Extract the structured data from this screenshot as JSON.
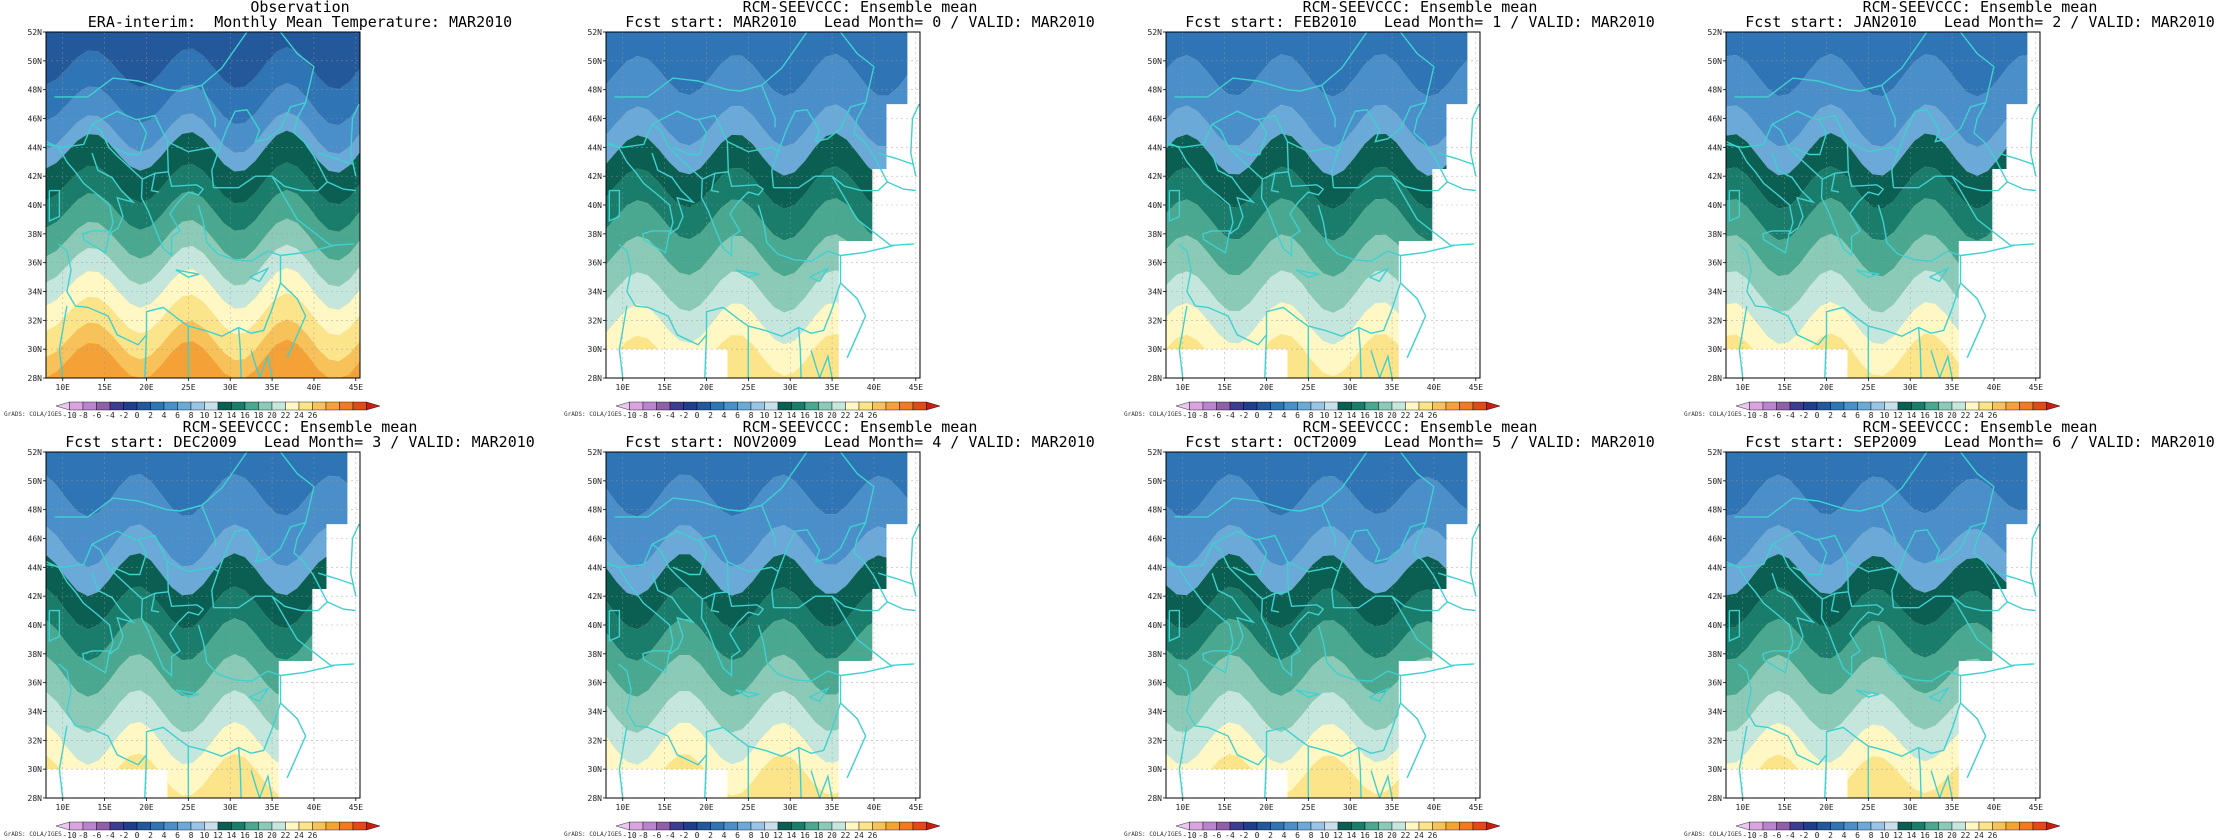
{
  "figure": {
    "panels": [
      {
        "id": "obs",
        "title1": "Observation",
        "title2": "ERA-interim:  Monthly Mean Temperature: MAR2010",
        "variant": 0
      },
      {
        "id": "lead0",
        "title1": "RCM-SEEVCCC: Ensemble mean",
        "title2": "Fcst start: MAR2010   Lead Month= 0 / VALID: MAR2010",
        "variant": 1
      },
      {
        "id": "lead1",
        "title1": "RCM-SEEVCCC: Ensemble mean",
        "title2": "Fcst start: FEB2010   Lead Month= 1 / VALID: MAR2010",
        "variant": 2
      },
      {
        "id": "lead2",
        "title1": "RCM-SEEVCCC: Ensemble mean",
        "title2": "Fcst start: JAN2010   Lead Month= 2 / VALID: MAR2010",
        "variant": 3
      },
      {
        "id": "lead3",
        "title1": "RCM-SEEVCCC: Ensemble mean",
        "title2": "Fcst start: DEC2009   Lead Month= 3 / VALID: MAR2010",
        "variant": 4
      },
      {
        "id": "lead4",
        "title1": "RCM-SEEVCCC: Ensemble mean",
        "title2": "Fcst start: NOV2009   Lead Month= 4 / VALID: MAR2010",
        "variant": 5
      },
      {
        "id": "lead5",
        "title1": "RCM-SEEVCCC: Ensemble mean",
        "title2": "Fcst start: OCT2009   Lead Month= 5 / VALID: MAR2010",
        "variant": 6
      },
      {
        "id": "lead6",
        "title1": "RCM-SEEVCCC: Ensemble mean",
        "title2": "Fcst start: SEP2009   Lead Month= 6 / VALID: MAR2010",
        "variant": 7
      }
    ],
    "lat_labels": [
      "52N",
      "50N",
      "48N",
      "46N",
      "44N",
      "42N",
      "40N",
      "38N",
      "36N",
      "34N",
      "32N",
      "30N",
      "28N"
    ],
    "lon_labels": [
      "10E",
      "15E",
      "20E",
      "25E",
      "30E",
      "35E",
      "40E",
      "45E"
    ],
    "lon_values": [
      10,
      15,
      20,
      25,
      30,
      35,
      40,
      45
    ],
    "lon_range": [
      8,
      45.5
    ],
    "lat_range": [
      28,
      52
    ],
    "colorbar_labels": [
      "-10",
      "-8",
      "-6",
      "-4",
      "-2",
      "0",
      "2",
      "4",
      "6",
      "8",
      "10",
      "12",
      "14",
      "16",
      "18",
      "20",
      "22",
      "24",
      "26"
    ],
    "colorbar_colors": [
      "#e8c6ee",
      "#d9a4e0",
      "#b884cc",
      "#8e5ea8",
      "#3d3c8e",
      "#1f3f8c",
      "#23589a",
      "#2f74b4",
      "#4a8fca",
      "#6aa9d8",
      "#9cc4e4",
      "#c8e0ec",
      "#0a5e52",
      "#1a7c6a",
      "#4aa890",
      "#8ccab8",
      "#c4e6dc",
      "#fff8c4",
      "#fbe48a",
      "#f8c25a",
      "#f4a238",
      "#ee7a22",
      "#e04a18",
      "#c81e10"
    ],
    "credit": "GrADS: COLA/IGES",
    "land_color": "#40d0d0"
  }
}
